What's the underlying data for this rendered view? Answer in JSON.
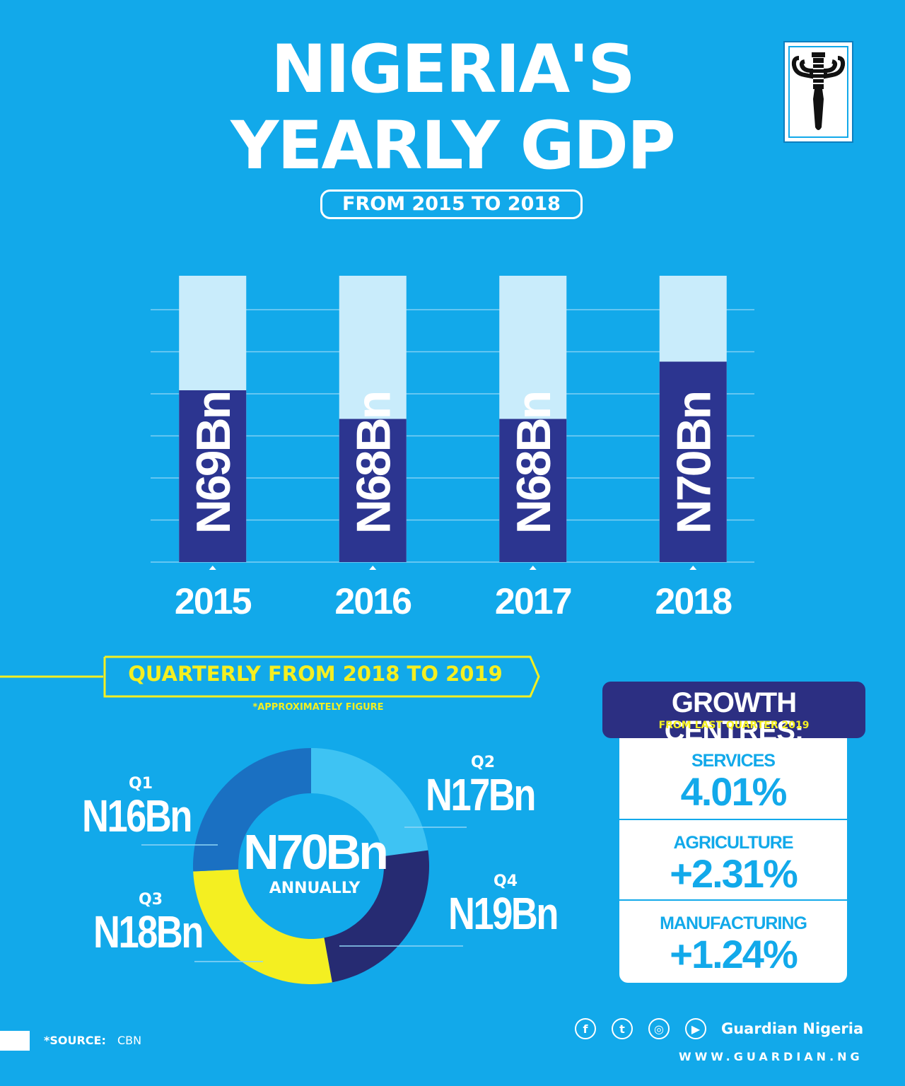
{
  "header": {
    "title_line1": "NIGERIA'S",
    "title_line2": "YEARLY GDP",
    "subtitle": "FROM 2015 TO 2018",
    "logo_icon": "guardian-logo-icon"
  },
  "chart_data": [
    {
      "type": "bar",
      "title": "NIGERIA'S YEARLY GDP",
      "subtitle": "FROM 2015 TO 2018",
      "categories": [
        "2015",
        "2016",
        "2017",
        "2018"
      ],
      "values": [
        69,
        68,
        68,
        70
      ],
      "labels": [
        "N69Bn",
        "N68Bn",
        "N68Bn",
        "N70Bn"
      ],
      "unit": "Bn",
      "ylim": [
        63,
        73
      ],
      "grid": true,
      "colors": {
        "fill": "#2c3590",
        "track": "#c9ecfb",
        "grid": "#7fd0f4"
      }
    },
    {
      "type": "pie",
      "title": "QUARTERLY FROM 2018 TO 2019",
      "note": "*APPROXIMATELY FIGURE",
      "total": "N70Bn",
      "total_sub": "ANNUALLY",
      "slices": [
        {
          "name": "Q1",
          "value": 16,
          "label": "N16Bn",
          "color": "#3ec3f3"
        },
        {
          "name": "Q2",
          "value": 17,
          "label": "N17Bn",
          "color": "#262b72"
        },
        {
          "name": "Q4",
          "value": 19,
          "label": "N19Bn",
          "color": "#f4ef21"
        },
        {
          "name": "Q3",
          "value": 18,
          "label": "N18Bn",
          "color": "#1a70c2"
        }
      ]
    }
  ],
  "growth": {
    "title": "GROWTH CENTRES:",
    "subtitle": "FROM LAST QUARTER 2019",
    "rows": [
      {
        "sector": "SERVICES",
        "value": "4.01%"
      },
      {
        "sector": "AGRICULTURE",
        "value": "+2.31%"
      },
      {
        "sector": "MANUFACTURING",
        "value": "+1.24%"
      }
    ]
  },
  "footer": {
    "source_label": "*SOURCE:",
    "source_value": "CBN",
    "social": [
      {
        "icon": "facebook-icon",
        "glyph": "f"
      },
      {
        "icon": "twitter-icon",
        "glyph": "t"
      },
      {
        "icon": "instagram-icon",
        "glyph": "◎"
      },
      {
        "icon": "youtube-icon",
        "glyph": "▶"
      }
    ],
    "brand": "Guardian Nigeria",
    "url": "WWW.GUARDIAN.NG"
  },
  "colors": {
    "background": "#12a9ea",
    "accent_yellow": "#f4ef21",
    "navy": "#2c2f82"
  }
}
